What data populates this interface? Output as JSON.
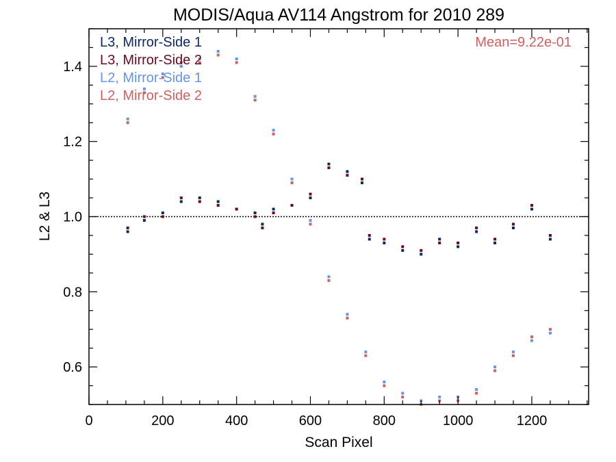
{
  "chart_data": {
    "type": "scatter",
    "title": "MODIS/Aqua AV114 Angstrom for 2010 289",
    "xlabel": "Scan Pixel",
    "ylabel": "L2 & L3",
    "xlim": [
      0,
      1354
    ],
    "ylim": [
      0.5,
      1.5
    ],
    "x_ticks": [
      0,
      200,
      400,
      600,
      800,
      1000,
      1200
    ],
    "y_ticks": [
      0.6,
      0.8,
      1.0,
      1.2,
      1.4
    ],
    "x_tick_labels": [
      "0",
      "200",
      "400",
      "600",
      "800",
      "1000",
      "1200"
    ],
    "y_tick_labels": [
      "0.6",
      "0.8",
      "1.0",
      "1.2",
      "1.4"
    ],
    "reference_line": 1.0,
    "annotation": "Mean=9.22e-01",
    "annotation_color": "#d0605e",
    "legend_position": "top-left",
    "series": [
      {
        "name": "L3, Mirror-Side 1",
        "color": "#0a2a66",
        "points": [
          [
            105,
            0.96
          ],
          [
            150,
            0.99
          ],
          [
            200,
            1.01
          ],
          [
            250,
            1.04
          ],
          [
            300,
            1.05
          ],
          [
            350,
            1.04
          ],
          [
            400,
            1.02
          ],
          [
            450,
            1.01
          ],
          [
            470,
            0.98
          ],
          [
            500,
            1.02
          ],
          [
            550,
            1.03
          ],
          [
            600,
            1.05
          ],
          [
            650,
            1.14
          ],
          [
            700,
            1.12
          ],
          [
            740,
            1.09
          ],
          [
            760,
            0.94
          ],
          [
            800,
            0.93
          ],
          [
            850,
            0.91
          ],
          [
            900,
            0.9
          ],
          [
            950,
            0.94
          ],
          [
            1000,
            0.92
          ],
          [
            1050,
            0.96
          ],
          [
            1100,
            0.93
          ],
          [
            1150,
            0.97
          ],
          [
            1200,
            1.02
          ],
          [
            1250,
            0.94
          ]
        ]
      },
      {
        "name": "L3, Mirror-Side 2",
        "color": "#6b0a1e",
        "points": [
          [
            105,
            0.97
          ],
          [
            150,
            1.0
          ],
          [
            200,
            1.0
          ],
          [
            250,
            1.05
          ],
          [
            300,
            1.04
          ],
          [
            350,
            1.03
          ],
          [
            400,
            1.02
          ],
          [
            450,
            1.0
          ],
          [
            470,
            0.97
          ],
          [
            500,
            1.01
          ],
          [
            550,
            1.03
          ],
          [
            600,
            1.06
          ],
          [
            650,
            1.13
          ],
          [
            700,
            1.11
          ],
          [
            740,
            1.1
          ],
          [
            760,
            0.95
          ],
          [
            800,
            0.94
          ],
          [
            850,
            0.92
          ],
          [
            900,
            0.91
          ],
          [
            950,
            0.93
          ],
          [
            1000,
            0.93
          ],
          [
            1050,
            0.97
          ],
          [
            1100,
            0.94
          ],
          [
            1150,
            0.98
          ],
          [
            1200,
            1.03
          ],
          [
            1250,
            0.95
          ]
        ]
      },
      {
        "name": "L2, Mirror-Side 1",
        "color": "#6495ed",
        "points": [
          [
            105,
            1.26
          ],
          [
            150,
            1.34
          ],
          [
            200,
            1.38
          ],
          [
            250,
            1.4
          ],
          [
            300,
            1.42
          ],
          [
            350,
            1.44
          ],
          [
            400,
            1.42
          ],
          [
            450,
            1.32
          ],
          [
            500,
            1.23
          ],
          [
            550,
            1.1
          ],
          [
            600,
            0.99
          ],
          [
            650,
            0.84
          ],
          [
            700,
            0.74
          ],
          [
            750,
            0.64
          ],
          [
            800,
            0.56
          ],
          [
            850,
            0.53
          ],
          [
            900,
            0.51
          ],
          [
            950,
            0.52
          ],
          [
            1000,
            0.52
          ],
          [
            1050,
            0.54
          ],
          [
            1100,
            0.6
          ],
          [
            1150,
            0.64
          ],
          [
            1200,
            0.67
          ],
          [
            1250,
            0.69
          ]
        ]
      },
      {
        "name": "L2, Mirror-Side 2",
        "color": "#d0605e",
        "points": [
          [
            105,
            1.25
          ],
          [
            150,
            1.33
          ],
          [
            200,
            1.37
          ],
          [
            250,
            1.41
          ],
          [
            300,
            1.41
          ],
          [
            350,
            1.43
          ],
          [
            400,
            1.41
          ],
          [
            450,
            1.31
          ],
          [
            500,
            1.22
          ],
          [
            550,
            1.09
          ],
          [
            600,
            0.98
          ],
          [
            650,
            0.83
          ],
          [
            700,
            0.73
          ],
          [
            750,
            0.63
          ],
          [
            800,
            0.55
          ],
          [
            850,
            0.52
          ],
          [
            900,
            0.5
          ],
          [
            950,
            0.51
          ],
          [
            1000,
            0.51
          ],
          [
            1050,
            0.53
          ],
          [
            1100,
            0.59
          ],
          [
            1150,
            0.63
          ],
          [
            1200,
            0.68
          ],
          [
            1250,
            0.7
          ]
        ]
      }
    ]
  }
}
